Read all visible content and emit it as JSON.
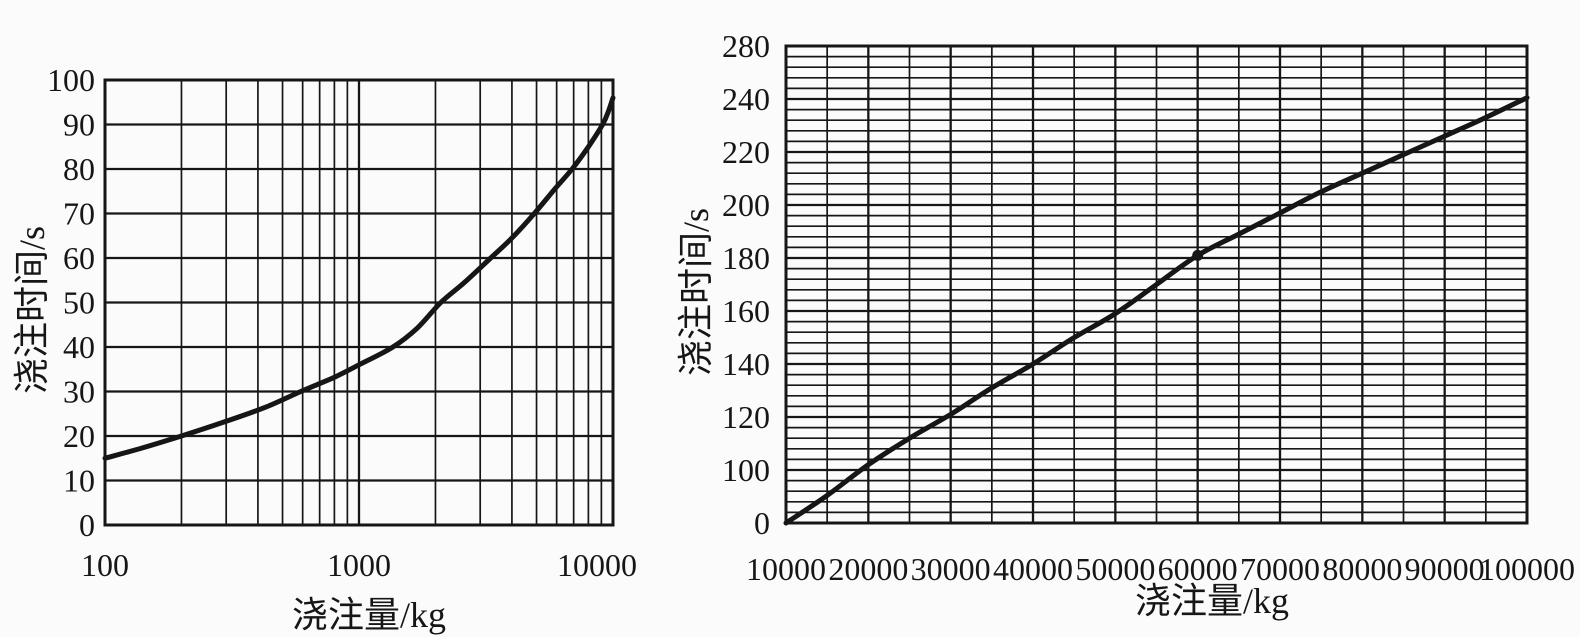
{
  "figure": {
    "background": "#fbfbfb",
    "ink_color": "#161616",
    "description": "Two scanned textbook charts of pouring time versus pouring weight"
  },
  "chart_data": [
    {
      "name": "pouring-time-vs-weight-log",
      "type": "line",
      "title": "",
      "xlabel": "浇注量/kg",
      "ylabel": "浇注时间/s",
      "x_scale": "log",
      "xlim": [
        100,
        10000
      ],
      "x_major_ticks": [
        100,
        1000,
        10000
      ],
      "x_tick_labels": [
        "100",
        "1000",
        "10000"
      ],
      "x_minor_gridlines": "log decades 2–9 per decade",
      "ylim": [
        0,
        100
      ],
      "y_ticks": [
        0,
        10,
        20,
        30,
        40,
        50,
        60,
        70,
        80,
        90,
        100
      ],
      "y_tick_labels": [
        "0",
        "10",
        "20",
        "30",
        "40",
        "50",
        "60",
        "70",
        "80",
        "90",
        "100"
      ],
      "grid": "on",
      "legend": "none",
      "series": [
        {
          "name": "浇注时间",
          "points": [
            [
              100,
              15
            ],
            [
              140,
              17.3
            ],
            [
              200,
              20
            ],
            [
              300,
              23.3
            ],
            [
              430,
              26.5
            ],
            [
              590,
              30
            ],
            [
              800,
              33.2
            ],
            [
              1000,
              36
            ],
            [
              1360,
              40
            ],
            [
              1700,
              44.3
            ],
            [
              2100,
              50
            ],
            [
              2600,
              54.5
            ],
            [
              3300,
              60
            ],
            [
              4000,
              64.5
            ],
            [
              4900,
              70
            ],
            [
              5900,
              75.5
            ],
            [
              6900,
              80
            ],
            [
              8000,
              85
            ],
            [
              9100,
              90
            ],
            [
              9600,
              93
            ],
            [
              10000,
              96
            ]
          ]
        }
      ]
    },
    {
      "name": "pouring-time-vs-weight-linear",
      "type": "line",
      "title": "",
      "xlabel": "浇注量/kg",
      "ylabel": "浇注时间/s",
      "x_scale": "linear",
      "xlim": [
        10000,
        100000
      ],
      "x_major_ticks": [
        10000,
        20000,
        30000,
        40000,
        50000,
        60000,
        70000,
        80000,
        90000,
        100000
      ],
      "x_tick_labels": [
        "10000",
        "20000",
        "30000",
        "40000",
        "50000",
        "60000",
        "70000",
        "80000",
        "90000",
        "100000"
      ],
      "x_minor_step": 5000,
      "y_tick_labels_bottom_to_top": [
        "0",
        "100",
        "120",
        "140",
        "160",
        "180",
        "200",
        "220",
        "240",
        "280"
      ],
      "y_axis_note": "labeled gridlines are equally spaced on the printed axis (0–100 and 240–280 segments compressed)",
      "y_minor_subdivisions_per_major": 5,
      "grid": "on",
      "legend": "none",
      "marker_point": [
        60000,
        181
      ],
      "series": [
        {
          "name": "浇注时间",
          "points": [
            [
              10000,
              0
            ],
            [
              15000,
              52
            ],
            [
              20000,
              102
            ],
            [
              25000,
              112
            ],
            [
              30000,
              121
            ],
            [
              35000,
              131
            ],
            [
              40000,
              140
            ],
            [
              45000,
              150
            ],
            [
              50000,
              159
            ],
            [
              55000,
              170
            ],
            [
              60000,
              181
            ],
            [
              65000,
              189
            ],
            [
              70000,
              197
            ],
            [
              75000,
              205
            ],
            [
              80000,
              212
            ],
            [
              85000,
              219
            ],
            [
              90000,
              226
            ],
            [
              95000,
              233
            ],
            [
              100000,
              241
            ]
          ]
        }
      ]
    }
  ]
}
